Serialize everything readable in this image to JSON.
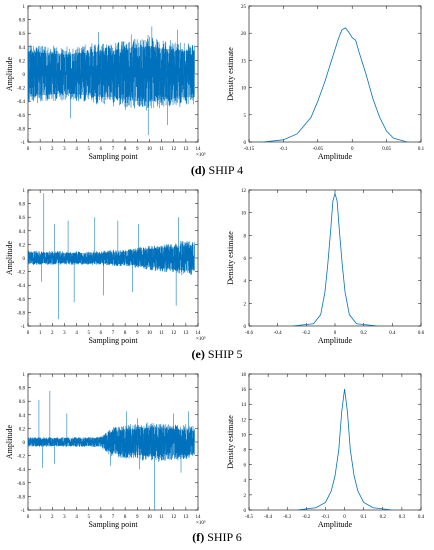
{
  "colors": {
    "signal": "#0072BD",
    "axis": "#000000"
  },
  "panels": [
    {
      "caption_letter": "(d)",
      "caption_text": " SHIP 4",
      "signal": {
        "type": "line",
        "xlabel": "Sampling point",
        "ylabel": "Amplitude",
        "xlim": [
          0,
          14
        ],
        "ylim": [
          -1,
          1
        ],
        "x_exponent": "×10⁵",
        "xticks": [
          "0",
          "1",
          "2",
          "3",
          "4",
          "5",
          "6",
          "7",
          "8",
          "9",
          "10",
          "11",
          "12",
          "13",
          "14"
        ],
        "yticks": [
          "-1",
          "-0.8",
          "-0.6",
          "-0.4",
          "-0.2",
          "0",
          "0.2",
          "0.4",
          "0.6",
          "0.8",
          "1"
        ],
        "envelope_x": [
          0,
          1,
          2,
          3,
          4,
          5,
          6,
          7,
          8,
          9,
          10,
          11,
          12,
          13,
          13.7
        ],
        "envelope_upper": [
          0.45,
          0.42,
          0.4,
          0.38,
          0.4,
          0.42,
          0.45,
          0.45,
          0.5,
          0.52,
          0.55,
          0.5,
          0.48,
          0.45,
          0.45
        ],
        "envelope_lower": [
          -0.45,
          -0.42,
          -0.4,
          -0.38,
          -0.4,
          -0.42,
          -0.45,
          -0.45,
          -0.5,
          -0.52,
          -0.55,
          -0.5,
          -0.48,
          -0.45,
          -0.45
        ],
        "peaks": [
          [
            5.8,
            0.62
          ],
          [
            8.5,
            0.58
          ],
          [
            10.2,
            0.7
          ],
          [
            12.3,
            0.65
          ],
          [
            3.5,
            -0.65
          ],
          [
            9.9,
            -0.9
          ],
          [
            11.5,
            -0.75
          ]
        ]
      },
      "density": {
        "type": "line",
        "xlabel": "Amplitude",
        "ylabel": "Density estimate",
        "xlim": [
          -0.15,
          0.1
        ],
        "ylim": [
          0,
          25
        ],
        "xticks": [
          "-0.15",
          "-0.1",
          "-0.05",
          "0",
          "0.05",
          "0.1"
        ],
        "yticks": [
          "0",
          "5",
          "10",
          "15",
          "20",
          "25"
        ],
        "ytick_values": [
          0,
          5,
          10,
          15,
          20,
          25
        ],
        "xtick_values": [
          -0.15,
          -0.1,
          -0.05,
          0,
          0.05,
          0.1
        ],
        "x": [
          -0.13,
          -0.1,
          -0.08,
          -0.06,
          -0.05,
          -0.04,
          -0.03,
          -0.02,
          -0.015,
          -0.01,
          -0.005,
          0,
          0.005,
          0.01,
          0.02,
          0.03,
          0.04,
          0.05,
          0.06,
          0.08
        ],
        "y": [
          0,
          0.4,
          1.5,
          4.5,
          7.5,
          11,
          15,
          19,
          20.6,
          21,
          20.2,
          19.2,
          18.7,
          16.5,
          12.5,
          8,
          4.5,
          2,
          0.7,
          0
        ]
      }
    },
    {
      "caption_letter": "(e)",
      "caption_text": " SHIP 5",
      "signal": {
        "type": "line",
        "xlabel": "Sampling point",
        "ylabel": "Amplitude",
        "xlim": [
          0,
          14
        ],
        "ylim": [
          -1,
          1
        ],
        "x_exponent": "×10⁵",
        "xticks": [
          "0",
          "1",
          "2",
          "3",
          "4",
          "5",
          "6",
          "7",
          "8",
          "9",
          "10",
          "11",
          "12",
          "13",
          "14"
        ],
        "yticks": [
          "-1",
          "-0.8",
          "-0.6",
          "-0.4",
          "-0.2",
          "0",
          "0.2",
          "0.4",
          "0.6",
          "0.8",
          "1"
        ],
        "envelope_x": [
          0,
          1,
          2,
          3,
          4,
          5,
          6,
          7,
          8,
          9,
          10,
          11,
          12,
          13,
          13.7
        ],
        "envelope_upper": [
          0.1,
          0.1,
          0.1,
          0.1,
          0.1,
          0.1,
          0.1,
          0.12,
          0.12,
          0.15,
          0.18,
          0.2,
          0.22,
          0.25,
          0.25
        ],
        "envelope_lower": [
          -0.1,
          -0.1,
          -0.1,
          -0.1,
          -0.1,
          -0.1,
          -0.1,
          -0.12,
          -0.12,
          -0.15,
          -0.18,
          -0.2,
          -0.22,
          -0.25,
          -0.25
        ],
        "peaks": [
          [
            1.3,
            0.95
          ],
          [
            2.2,
            0.5
          ],
          [
            3.3,
            0.55
          ],
          [
            5.5,
            0.6
          ],
          [
            7.4,
            0.55
          ],
          [
            9.1,
            0.5
          ],
          [
            12.4,
            0.6
          ],
          [
            1.1,
            -0.35
          ],
          [
            2.5,
            -0.9
          ],
          [
            3.8,
            -0.65
          ],
          [
            6.2,
            -0.55
          ],
          [
            8.6,
            -0.5
          ],
          [
            12.2,
            -0.7
          ]
        ]
      },
      "density": {
        "type": "line",
        "xlabel": "Amplitude",
        "ylabel": "Density estimate",
        "xlim": [
          -0.6,
          0.6
        ],
        "ylim": [
          0,
          12
        ],
        "xticks": [
          "-0.6",
          "-0.4",
          "-0.2",
          "0",
          "0.2",
          "0.4",
          "0.6"
        ],
        "yticks": [
          "0",
          "2",
          "4",
          "6",
          "8",
          "10",
          "12"
        ],
        "ytick_values": [
          0,
          2,
          4,
          6,
          8,
          10,
          12
        ],
        "xtick_values": [
          -0.6,
          -0.4,
          -0.2,
          0,
          0.2,
          0.4,
          0.6
        ],
        "x": [
          -0.3,
          -0.15,
          -0.1,
          -0.07,
          -0.05,
          -0.03,
          -0.015,
          0,
          0.015,
          0.03,
          0.05,
          0.07,
          0.1,
          0.15,
          0.3
        ],
        "y": [
          0,
          0.2,
          1,
          3,
          5.5,
          8.5,
          11,
          11.7,
          11,
          8.5,
          5.5,
          3,
          1,
          0.2,
          0
        ]
      }
    },
    {
      "caption_letter": "(f)",
      "caption_text": " SHIP 6",
      "signal": {
        "type": "line",
        "xlabel": "Sampling point",
        "ylabel": "Amplitude",
        "xlim": [
          0,
          14
        ],
        "ylim": [
          -1,
          1
        ],
        "x_exponent": "×10⁵",
        "xticks": [
          "0",
          "1",
          "2",
          "3",
          "4",
          "5",
          "6",
          "7",
          "8",
          "9",
          "10",
          "11",
          "12",
          "13",
          "14"
        ],
        "yticks": [
          "-1",
          "-0.8",
          "-0.6",
          "-0.4",
          "-0.2",
          "0",
          "0.2",
          "0.4",
          "0.6",
          "0.8",
          "1"
        ],
        "envelope_x": [
          0,
          1,
          2,
          3,
          4,
          5,
          6,
          6.5,
          7,
          8,
          9,
          10,
          11,
          12,
          13,
          13.7
        ],
        "envelope_upper": [
          0.07,
          0.07,
          0.07,
          0.07,
          0.07,
          0.07,
          0.08,
          0.15,
          0.22,
          0.25,
          0.25,
          0.28,
          0.28,
          0.26,
          0.25,
          0.25
        ],
        "envelope_lower": [
          -0.07,
          -0.07,
          -0.07,
          -0.07,
          -0.07,
          -0.07,
          -0.08,
          -0.15,
          -0.22,
          -0.25,
          -0.25,
          -0.28,
          -0.28,
          -0.26,
          -0.25,
          -0.25
        ],
        "peaks": [
          [
            0.9,
            0.62
          ],
          [
            1.8,
            0.75
          ],
          [
            3.2,
            0.42
          ],
          [
            8.1,
            0.45
          ],
          [
            9.0,
            0.35
          ],
          [
            12.0,
            0.42
          ],
          [
            13.2,
            0.45
          ],
          [
            1.2,
            -0.38
          ],
          [
            2.2,
            -0.32
          ],
          [
            6.8,
            -0.35
          ],
          [
            9.2,
            -0.4
          ],
          [
            10.4,
            -1.0
          ],
          [
            12.6,
            -0.45
          ]
        ]
      },
      "density": {
        "type": "line",
        "xlabel": "Amplitude",
        "ylabel": "Density estimate",
        "xlim": [
          -0.5,
          0.4
        ],
        "ylim": [
          0,
          18
        ],
        "xticks": [
          "-0.5",
          "-0.4",
          "-0.3",
          "-0.2",
          "-0.1",
          "0",
          "0.1",
          "0.2",
          "0.3",
          "0.4"
        ],
        "yticks": [
          "0",
          "2",
          "4",
          "6",
          "8",
          "10",
          "12",
          "14",
          "16",
          "18"
        ],
        "ytick_values": [
          0,
          2,
          4,
          6,
          8,
          10,
          12,
          14,
          16,
          18
        ],
        "xtick_values": [
          -0.5,
          -0.4,
          -0.3,
          -0.2,
          -0.1,
          0,
          0.1,
          0.2,
          0.3,
          0.4
        ],
        "x": [
          -0.25,
          -0.15,
          -0.1,
          -0.07,
          -0.05,
          -0.03,
          -0.015,
          0,
          0.015,
          0.03,
          0.05,
          0.07,
          0.1,
          0.15,
          0.25
        ],
        "y": [
          0,
          0.3,
          1,
          2.5,
          4.5,
          8,
          13,
          16,
          13,
          8,
          4.5,
          2.5,
          1,
          0.3,
          0
        ]
      }
    }
  ]
}
